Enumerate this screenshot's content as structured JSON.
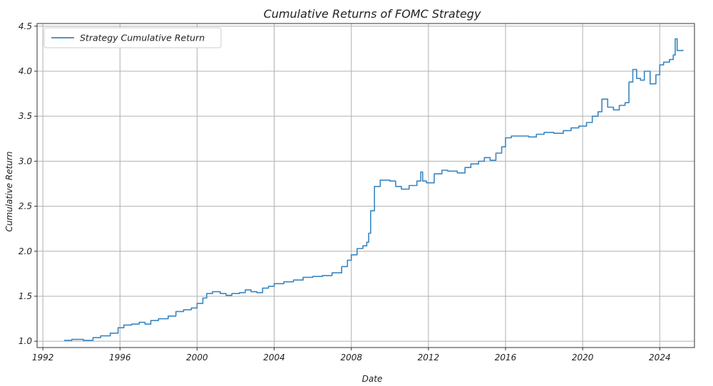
{
  "chart_data": {
    "type": "line",
    "title": "Cumulative Returns of FOMC Strategy",
    "xlabel": "Date",
    "ylabel": "Cumulative Return",
    "xlim": [
      1991.7,
      2025.8
    ],
    "ylim": [
      0.93,
      4.53
    ],
    "x_ticks": [
      1992,
      1996,
      2000,
      2004,
      2008,
      2012,
      2016,
      2020,
      2024
    ],
    "y_ticks": [
      1.0,
      1.5,
      2.0,
      2.5,
      3.0,
      3.5,
      4.0,
      4.5
    ],
    "y_tick_labels": [
      "1.0",
      "1.5",
      "2.0",
      "2.5",
      "3.0",
      "3.5",
      "4.0",
      "4.5"
    ],
    "grid": true,
    "legend_position": "top-left",
    "series": [
      {
        "name": "Strategy Cumulative Return",
        "color": "#3a86c0",
        "x": [
          1993.1,
          1993.5,
          1993.9,
          1994.1,
          1994.6,
          1995.0,
          1995.5,
          1995.9,
          1996.2,
          1996.6,
          1997.0,
          1997.3,
          1997.6,
          1998.0,
          1998.5,
          1998.9,
          1999.3,
          1999.7,
          2000.0,
          2000.3,
          2000.5,
          2000.8,
          2001.2,
          2001.5,
          2001.8,
          2002.2,
          2002.5,
          2002.8,
          2003.1,
          2003.4,
          2003.7,
          2004.0,
          2004.5,
          2005.0,
          2005.5,
          2006.0,
          2006.5,
          2007.0,
          2007.5,
          2007.8,
          2008.0,
          2008.3,
          2008.6,
          2008.8,
          2008.9,
          2009.0,
          2009.2,
          2009.5,
          2010.0,
          2010.3,
          2010.6,
          2011.0,
          2011.4,
          2011.6,
          2011.7,
          2011.9,
          2012.3,
          2012.7,
          2013.0,
          2013.5,
          2013.9,
          2014.2,
          2014.6,
          2014.9,
          2015.2,
          2015.5,
          2015.8,
          2016.0,
          2016.3,
          2016.8,
          2017.2,
          2017.6,
          2018.0,
          2018.5,
          2019.0,
          2019.4,
          2019.8,
          2020.2,
          2020.5,
          2020.8,
          2021.0,
          2021.3,
          2021.6,
          2021.9,
          2022.2,
          2022.4,
          2022.6,
          2022.8,
          2023.0,
          2023.2,
          2023.5,
          2023.8,
          2024.0,
          2024.2,
          2024.5,
          2024.7,
          2024.8,
          2024.9,
          2025.0,
          2025.2
        ],
        "y": [
          1.01,
          1.02,
          1.02,
          1.01,
          1.04,
          1.06,
          1.09,
          1.15,
          1.18,
          1.19,
          1.21,
          1.19,
          1.23,
          1.25,
          1.28,
          1.33,
          1.35,
          1.37,
          1.42,
          1.48,
          1.53,
          1.55,
          1.53,
          1.51,
          1.53,
          1.54,
          1.57,
          1.55,
          1.54,
          1.59,
          1.61,
          1.64,
          1.66,
          1.68,
          1.71,
          1.72,
          1.73,
          1.76,
          1.83,
          1.9,
          1.96,
          2.03,
          2.06,
          2.1,
          2.2,
          2.45,
          2.72,
          2.79,
          2.78,
          2.72,
          2.69,
          2.73,
          2.78,
          2.88,
          2.78,
          2.76,
          2.86,
          2.9,
          2.89,
          2.87,
          2.93,
          2.97,
          3.0,
          3.04,
          3.01,
          3.09,
          3.16,
          3.26,
          3.28,
          3.28,
          3.27,
          3.3,
          3.32,
          3.31,
          3.34,
          3.37,
          3.39,
          3.43,
          3.5,
          3.55,
          3.69,
          3.6,
          3.57,
          3.62,
          3.65,
          3.88,
          4.02,
          3.92,
          3.9,
          4.0,
          3.86,
          3.96,
          4.07,
          4.1,
          4.13,
          4.18,
          4.36,
          4.23,
          4.23,
          4.24
        ]
      }
    ]
  }
}
